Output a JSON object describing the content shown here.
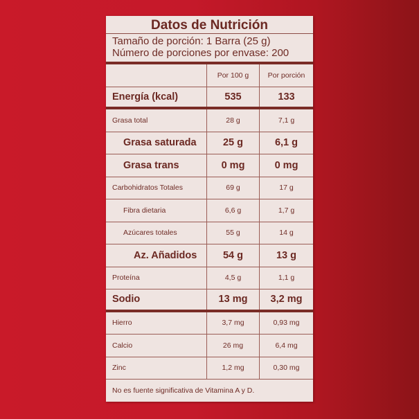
{
  "label": {
    "title": "Datos de Nutrición",
    "serving_size": "Tamaño de porción: 1 Barra (25 g)",
    "servings_per_container": "Número de porciones por envase: 200",
    "columns": [
      "",
      "Por 100 g",
      "Por porción"
    ],
    "rows": [
      {
        "name": "Energía (kcal)",
        "per100": "535",
        "perServing": "133",
        "style": "big",
        "indent": 0
      },
      {
        "name": "Grasa total",
        "per100": "28 g",
        "perServing": "7,1 g",
        "style": "small",
        "indent": 0
      },
      {
        "name": "Grasa saturada",
        "per100": "25 g",
        "perServing": "6,1 g",
        "style": "big",
        "indent": 1
      },
      {
        "name": "Grasa trans",
        "per100": "0 mg",
        "perServing": "0 mg",
        "style": "big",
        "indent": 1
      },
      {
        "name": "Carbohidratos Totales",
        "per100": "69 g",
        "perServing": "17 g",
        "style": "small",
        "indent": 0
      },
      {
        "name": "Fibra dietaria",
        "per100": "6,6 g",
        "perServing": "1,7 g",
        "style": "small",
        "indent": 1
      },
      {
        "name": "Azúcares totales",
        "per100": "55 g",
        "perServing": "14 g",
        "style": "small",
        "indent": 1
      },
      {
        "name": "Az. Añadidos",
        "per100": "54 g",
        "perServing": "13 g",
        "style": "big",
        "indent": 2
      },
      {
        "name": "Proteína",
        "per100": "4,5 g",
        "perServing": "1,1 g",
        "style": "small",
        "indent": 0
      },
      {
        "name": "Sodio",
        "per100": "13 mg",
        "perServing": "3,2 mg",
        "style": "big",
        "indent": 0
      },
      {
        "name": "Hierro",
        "per100": "3,7 mg",
        "perServing": "0,93 mg",
        "style": "small",
        "indent": 0
      },
      {
        "name": "Calcio",
        "per100": "26 mg",
        "perServing": "6,4 mg",
        "style": "small",
        "indent": 0
      },
      {
        "name": "Zinc",
        "per100": "1,2 mg",
        "perServing": "0,30 mg",
        "style": "small",
        "indent": 0
      }
    ],
    "footnote": "No es fuente significativa de Vitamina A y D."
  },
  "colors": {
    "background_left": "#c91a29",
    "background_right": "#8c1418",
    "card": "#efe4e1",
    "text": "#6b2822",
    "rule": "#7a2c26"
  }
}
